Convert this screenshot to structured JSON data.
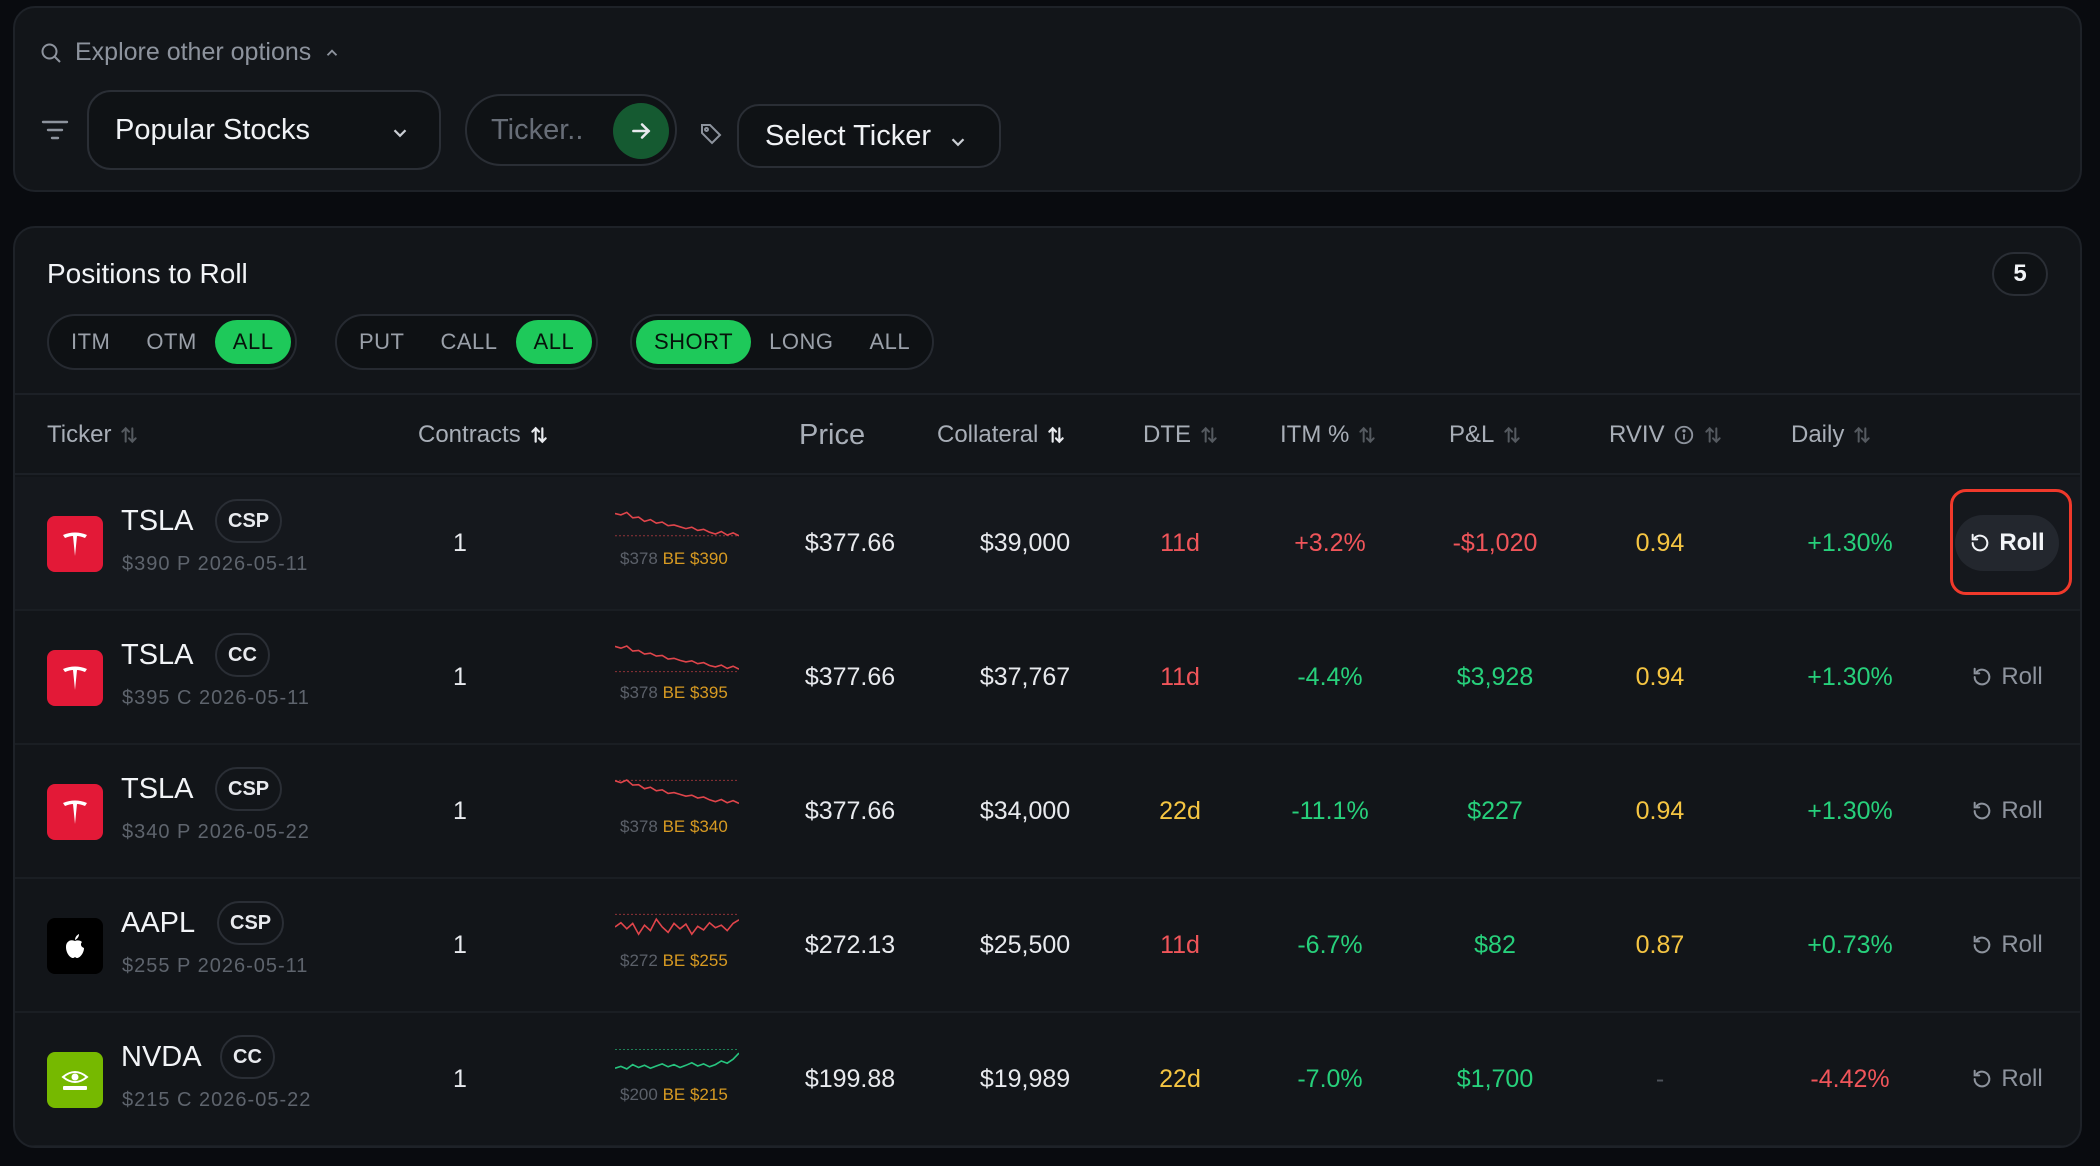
{
  "search": {
    "explore_label": "Explore other options",
    "category_select": "Popular Stocks",
    "ticker_placeholder": "Ticker..",
    "ticker_select": "Select Ticker"
  },
  "positions": {
    "title": "Positions to Roll",
    "count": "5",
    "filters": {
      "moneyness": [
        "ITM",
        "OTM",
        "ALL"
      ],
      "moneyness_active": "ALL",
      "option_type": [
        "PUT",
        "CALL",
        "ALL"
      ],
      "option_type_active": "ALL",
      "side": [
        "SHORT",
        "LONG",
        "ALL"
      ],
      "side_active": "SHORT"
    },
    "columns": {
      "ticker": "Ticker",
      "contracts": "Contracts",
      "price": "Price",
      "collateral": "Collateral",
      "dte": "DTE",
      "itm": "ITM %",
      "pnl": "P&L",
      "rviv": "RVIV",
      "daily": "Daily"
    },
    "roll_label": "Roll",
    "rows": [
      {
        "logo": "tesla-logo",
        "symbol": "TSLA",
        "type": "CSP",
        "detail": "$390 P 2026-05-11",
        "contracts": "1",
        "spark_price": "$378",
        "spark_be": "BE $390",
        "spark_color": "#e0454b",
        "spark_trend": [
          0.82,
          0.78,
          0.85,
          0.7,
          0.72,
          0.6,
          0.65,
          0.55,
          0.58,
          0.48,
          0.5,
          0.45,
          0.4,
          0.44,
          0.35,
          0.38,
          0.3,
          0.25,
          0.32,
          0.22,
          0.28,
          0.2
        ],
        "spark_be_level": 0.2,
        "price": "$377.66",
        "collateral": "$39,000",
        "dte": "11d",
        "dte_color": "#f0555a",
        "itm": "+3.2%",
        "itm_color": "#f0555a",
        "pnl": "-$1,020",
        "pnl_color": "#f0555a",
        "rviv": "0.94",
        "rviv_color": "#f5c542",
        "daily": "+1.30%",
        "daily_color": "#27d07b"
      },
      {
        "logo": "tesla-logo",
        "symbol": "TSLA",
        "type": "CC",
        "detail": "$395 C 2026-05-11",
        "contracts": "1",
        "spark_price": "$378",
        "spark_be": "BE $395",
        "spark_color": "#e0454b",
        "spark_trend": [
          0.85,
          0.8,
          0.86,
          0.72,
          0.74,
          0.64,
          0.66,
          0.58,
          0.6,
          0.5,
          0.52,
          0.46,
          0.42,
          0.45,
          0.37,
          0.4,
          0.32,
          0.28,
          0.33,
          0.24,
          0.3,
          0.22
        ],
        "spark_be_level": 0.15,
        "price": "$377.66",
        "collateral": "$37,767",
        "dte": "11d",
        "dte_color": "#f0555a",
        "itm": "-4.4%",
        "itm_color": "#27d07b",
        "pnl": "$3,928",
        "pnl_color": "#27d07b",
        "rviv": "0.94",
        "rviv_color": "#f5c542",
        "daily": "+1.30%",
        "daily_color": "#27d07b"
      },
      {
        "logo": "tesla-logo",
        "symbol": "TSLA",
        "type": "CSP",
        "detail": "$340 P 2026-05-22",
        "contracts": "1",
        "spark_price": "$378",
        "spark_be": "BE $340",
        "spark_color": "#e0454b",
        "spark_trend": [
          0.84,
          0.79,
          0.86,
          0.72,
          0.73,
          0.62,
          0.66,
          0.56,
          0.59,
          0.49,
          0.51,
          0.46,
          0.41,
          0.44,
          0.36,
          0.39,
          0.31,
          0.26,
          0.32,
          0.23,
          0.29,
          0.21
        ],
        "spark_be_level": 0.85,
        "price": "$377.66",
        "collateral": "$34,000",
        "dte": "22d",
        "dte_color": "#f5c542",
        "itm": "-11.1%",
        "itm_color": "#27d07b",
        "pnl": "$227",
        "pnl_color": "#27d07b",
        "rviv": "0.94",
        "rviv_color": "#f5c542",
        "daily": "+1.30%",
        "daily_color": "#27d07b"
      },
      {
        "logo": "apple-logo",
        "symbol": "AAPL",
        "type": "CSP",
        "detail": "$255 P 2026-05-11",
        "contracts": "1",
        "spark_price": "$272",
        "spark_be": "BE $255",
        "spark_color": "#e0454b",
        "spark_trend": [
          0.5,
          0.62,
          0.45,
          0.6,
          0.3,
          0.55,
          0.4,
          0.72,
          0.5,
          0.35,
          0.6,
          0.45,
          0.58,
          0.3,
          0.52,
          0.42,
          0.62,
          0.48,
          0.55,
          0.4,
          0.6,
          0.7
        ],
        "spark_be_level": 0.85,
        "price": "$272.13",
        "collateral": "$25,500",
        "dte": "11d",
        "dte_color": "#f0555a",
        "itm": "-6.7%",
        "itm_color": "#27d07b",
        "pnl": "$82",
        "pnl_color": "#27d07b",
        "rviv": "0.87",
        "rviv_color": "#f5c542",
        "daily": "+0.73%",
        "daily_color": "#27d07b"
      },
      {
        "logo": "nvidia-logo",
        "symbol": "NVDA",
        "type": "CC",
        "detail": "$215 C 2026-05-22",
        "contracts": "1",
        "spark_price": "$200",
        "spark_be": "BE $215",
        "spark_color": "#27c47f",
        "spark_trend": [
          0.3,
          0.35,
          0.28,
          0.4,
          0.32,
          0.38,
          0.3,
          0.36,
          0.42,
          0.34,
          0.4,
          0.32,
          0.38,
          0.45,
          0.36,
          0.42,
          0.34,
          0.4,
          0.5,
          0.44,
          0.55,
          0.72
        ],
        "spark_be_level": 0.82,
        "price": "$199.88",
        "collateral": "$19,989",
        "dte": "22d",
        "dte_color": "#f5c542",
        "itm": "-7.0%",
        "itm_color": "#27d07b",
        "pnl": "$1,700",
        "pnl_color": "#27d07b",
        "rviv": "-",
        "rviv_color": "#4e535b",
        "daily": "-4.42%",
        "daily_color": "#f0555a"
      }
    ]
  }
}
